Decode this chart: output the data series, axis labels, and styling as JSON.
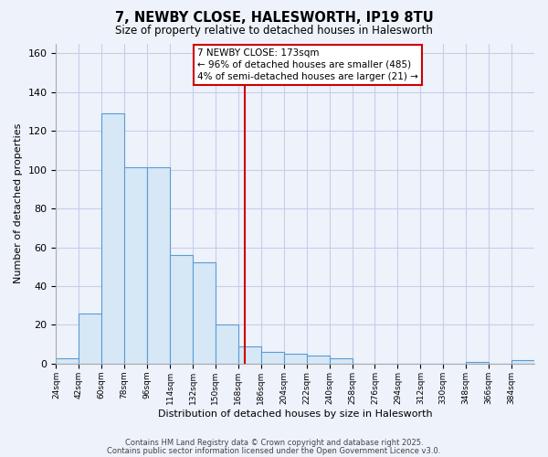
{
  "title": "7, NEWBY CLOSE, HALESWORTH, IP19 8TU",
  "subtitle": "Size of property relative to detached houses in Halesworth",
  "xlabel": "Distribution of detached houses by size in Halesworth",
  "ylabel": "Number of detached properties",
  "bin_edges": [
    24,
    42,
    60,
    78,
    96,
    114,
    132,
    150,
    168,
    186,
    204,
    222,
    240,
    258,
    276,
    294,
    312,
    330,
    348,
    366,
    384,
    402
  ],
  "bin_counts": [
    3,
    26,
    129,
    101,
    101,
    56,
    52,
    20,
    9,
    6,
    5,
    4,
    3,
    0,
    0,
    0,
    0,
    0,
    1,
    0,
    2
  ],
  "bar_facecolor": "#d6e8f5",
  "bar_edgecolor": "#5b9bd5",
  "vline_x": 173,
  "vline_color": "#cc0000",
  "annotation_title": "7 NEWBY CLOSE: 173sqm",
  "annotation_line1": "← 96% of detached houses are smaller (485)",
  "annotation_line2": "4% of semi-detached houses are larger (21) →",
  "ylim": [
    0,
    165
  ],
  "xlim": [
    24,
    402
  ],
  "tick_labels": [
    "24sqm",
    "42sqm",
    "60sqm",
    "78sqm",
    "96sqm",
    "114sqm",
    "132sqm",
    "150sqm",
    "168sqm",
    "186sqm",
    "204sqm",
    "222sqm",
    "240sqm",
    "258sqm",
    "276sqm",
    "294sqm",
    "312sqm",
    "330sqm",
    "348sqm",
    "366sqm",
    "384sqm"
  ],
  "footnote1": "Contains HM Land Registry data © Crown copyright and database right 2025.",
  "footnote2": "Contains public sector information licensed under the Open Government Licence v3.0.",
  "bg_color": "#eef2fb",
  "grid_color": "#c5cfe8"
}
